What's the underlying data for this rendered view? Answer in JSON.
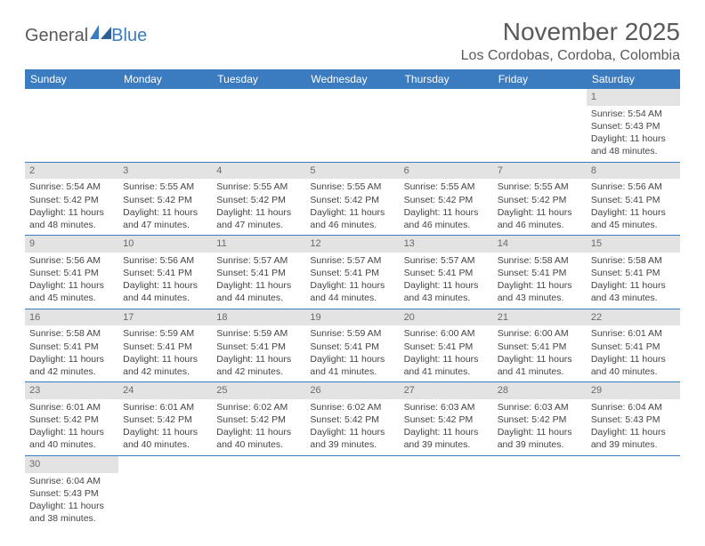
{
  "logo": {
    "text_gray": "General",
    "text_blue": "Blue"
  },
  "title": "November 2025",
  "location": "Los Cordobas, Cordoba, Colombia",
  "colors": {
    "header_bg": "#3b7bbf",
    "header_text": "#ffffff",
    "daynum_bg": "#e3e3e3",
    "daynum_text": "#6a6a6a",
    "border": "#3b7bbf",
    "body_text": "#444444",
    "title_text": "#5a5a5a"
  },
  "weekdays": [
    "Sunday",
    "Monday",
    "Tuesday",
    "Wednesday",
    "Thursday",
    "Friday",
    "Saturday"
  ],
  "weeks": [
    [
      null,
      null,
      null,
      null,
      null,
      null,
      {
        "n": "1",
        "sr": "Sunrise: 5:54 AM",
        "ss": "Sunset: 5:43 PM",
        "dl": "Daylight: 11 hours and 48 minutes."
      }
    ],
    [
      {
        "n": "2",
        "sr": "Sunrise: 5:54 AM",
        "ss": "Sunset: 5:42 PM",
        "dl": "Daylight: 11 hours and 48 minutes."
      },
      {
        "n": "3",
        "sr": "Sunrise: 5:55 AM",
        "ss": "Sunset: 5:42 PM",
        "dl": "Daylight: 11 hours and 47 minutes."
      },
      {
        "n": "4",
        "sr": "Sunrise: 5:55 AM",
        "ss": "Sunset: 5:42 PM",
        "dl": "Daylight: 11 hours and 47 minutes."
      },
      {
        "n": "5",
        "sr": "Sunrise: 5:55 AM",
        "ss": "Sunset: 5:42 PM",
        "dl": "Daylight: 11 hours and 46 minutes."
      },
      {
        "n": "6",
        "sr": "Sunrise: 5:55 AM",
        "ss": "Sunset: 5:42 PM",
        "dl": "Daylight: 11 hours and 46 minutes."
      },
      {
        "n": "7",
        "sr": "Sunrise: 5:55 AM",
        "ss": "Sunset: 5:42 PM",
        "dl": "Daylight: 11 hours and 46 minutes."
      },
      {
        "n": "8",
        "sr": "Sunrise: 5:56 AM",
        "ss": "Sunset: 5:41 PM",
        "dl": "Daylight: 11 hours and 45 minutes."
      }
    ],
    [
      {
        "n": "9",
        "sr": "Sunrise: 5:56 AM",
        "ss": "Sunset: 5:41 PM",
        "dl": "Daylight: 11 hours and 45 minutes."
      },
      {
        "n": "10",
        "sr": "Sunrise: 5:56 AM",
        "ss": "Sunset: 5:41 PM",
        "dl": "Daylight: 11 hours and 44 minutes."
      },
      {
        "n": "11",
        "sr": "Sunrise: 5:57 AM",
        "ss": "Sunset: 5:41 PM",
        "dl": "Daylight: 11 hours and 44 minutes."
      },
      {
        "n": "12",
        "sr": "Sunrise: 5:57 AM",
        "ss": "Sunset: 5:41 PM",
        "dl": "Daylight: 11 hours and 44 minutes."
      },
      {
        "n": "13",
        "sr": "Sunrise: 5:57 AM",
        "ss": "Sunset: 5:41 PM",
        "dl": "Daylight: 11 hours and 43 minutes."
      },
      {
        "n": "14",
        "sr": "Sunrise: 5:58 AM",
        "ss": "Sunset: 5:41 PM",
        "dl": "Daylight: 11 hours and 43 minutes."
      },
      {
        "n": "15",
        "sr": "Sunrise: 5:58 AM",
        "ss": "Sunset: 5:41 PM",
        "dl": "Daylight: 11 hours and 43 minutes."
      }
    ],
    [
      {
        "n": "16",
        "sr": "Sunrise: 5:58 AM",
        "ss": "Sunset: 5:41 PM",
        "dl": "Daylight: 11 hours and 42 minutes."
      },
      {
        "n": "17",
        "sr": "Sunrise: 5:59 AM",
        "ss": "Sunset: 5:41 PM",
        "dl": "Daylight: 11 hours and 42 minutes."
      },
      {
        "n": "18",
        "sr": "Sunrise: 5:59 AM",
        "ss": "Sunset: 5:41 PM",
        "dl": "Daylight: 11 hours and 42 minutes."
      },
      {
        "n": "19",
        "sr": "Sunrise: 5:59 AM",
        "ss": "Sunset: 5:41 PM",
        "dl": "Daylight: 11 hours and 41 minutes."
      },
      {
        "n": "20",
        "sr": "Sunrise: 6:00 AM",
        "ss": "Sunset: 5:41 PM",
        "dl": "Daylight: 11 hours and 41 minutes."
      },
      {
        "n": "21",
        "sr": "Sunrise: 6:00 AM",
        "ss": "Sunset: 5:41 PM",
        "dl": "Daylight: 11 hours and 41 minutes."
      },
      {
        "n": "22",
        "sr": "Sunrise: 6:01 AM",
        "ss": "Sunset: 5:41 PM",
        "dl": "Daylight: 11 hours and 40 minutes."
      }
    ],
    [
      {
        "n": "23",
        "sr": "Sunrise: 6:01 AM",
        "ss": "Sunset: 5:42 PM",
        "dl": "Daylight: 11 hours and 40 minutes."
      },
      {
        "n": "24",
        "sr": "Sunrise: 6:01 AM",
        "ss": "Sunset: 5:42 PM",
        "dl": "Daylight: 11 hours and 40 minutes."
      },
      {
        "n": "25",
        "sr": "Sunrise: 6:02 AM",
        "ss": "Sunset: 5:42 PM",
        "dl": "Daylight: 11 hours and 40 minutes."
      },
      {
        "n": "26",
        "sr": "Sunrise: 6:02 AM",
        "ss": "Sunset: 5:42 PM",
        "dl": "Daylight: 11 hours and 39 minutes."
      },
      {
        "n": "27",
        "sr": "Sunrise: 6:03 AM",
        "ss": "Sunset: 5:42 PM",
        "dl": "Daylight: 11 hours and 39 minutes."
      },
      {
        "n": "28",
        "sr": "Sunrise: 6:03 AM",
        "ss": "Sunset: 5:42 PM",
        "dl": "Daylight: 11 hours and 39 minutes."
      },
      {
        "n": "29",
        "sr": "Sunrise: 6:04 AM",
        "ss": "Sunset: 5:43 PM",
        "dl": "Daylight: 11 hours and 39 minutes."
      }
    ],
    [
      {
        "n": "30",
        "sr": "Sunrise: 6:04 AM",
        "ss": "Sunset: 5:43 PM",
        "dl": "Daylight: 11 hours and 38 minutes."
      },
      null,
      null,
      null,
      null,
      null,
      null
    ]
  ]
}
